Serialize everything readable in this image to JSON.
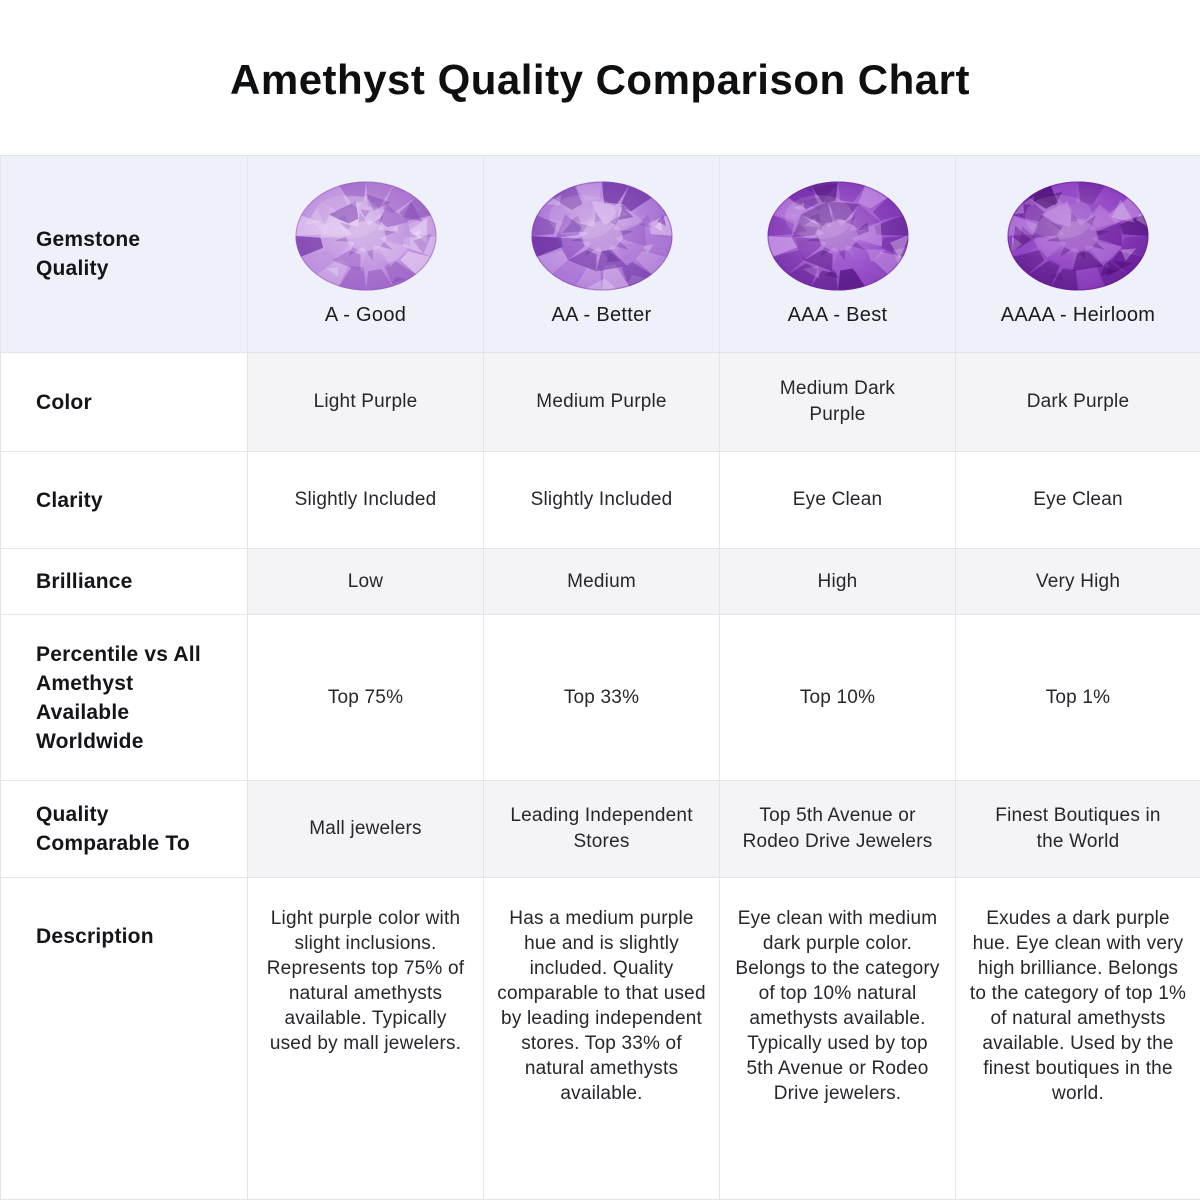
{
  "title": "Amethyst Quality Comparison Chart",
  "colors": {
    "header_row_bg": "#eef1fa",
    "alt_row_bg": "#f4f4f6",
    "border": "#e4e5e9",
    "text": "#1a1b1e"
  },
  "chart_data": {
    "type": "table",
    "title": "Amethyst Quality Comparison Chart",
    "corner_label": "Gemstone\nQuality",
    "columns": [
      {
        "caption": "A - Good",
        "gem_icon": "amethyst-gem-light",
        "gem_palette": {
          "light": "#e4cbf2",
          "mid": "#c195e0",
          "dark": "#9a5fc4",
          "deep": "#7a3cac"
        }
      },
      {
        "caption": "AA - Better",
        "gem_icon": "amethyst-gem-medium",
        "gem_palette": {
          "light": "#d8b6ec",
          "mid": "#af7cd8",
          "dark": "#8748bc",
          "deep": "#66289c"
        }
      },
      {
        "caption": "AAA - Best",
        "gem_icon": "amethyst-gem-medium-dark",
        "gem_palette": {
          "light": "#c99ae6",
          "mid": "#9c55cc",
          "dark": "#7229a6",
          "deep": "#521480"
        }
      },
      {
        "caption": "AAAA - Heirloom",
        "gem_icon": "amethyst-gem-dark",
        "gem_palette": {
          "light": "#bd85de",
          "mid": "#9246c4",
          "dark": "#671d96",
          "deep": "#45086e"
        }
      }
    ],
    "rows": [
      {
        "label": "Color",
        "values": [
          "Light Purple",
          "Medium Purple",
          "Medium Dark\nPurple",
          "Dark Purple"
        ]
      },
      {
        "label": "Clarity",
        "values": [
          "Slightly Included",
          "Slightly Included",
          "Eye Clean",
          "Eye Clean"
        ]
      },
      {
        "label": "Brilliance",
        "values": [
          "Low",
          "Medium",
          "High",
          "Very High"
        ]
      },
      {
        "label": "Percentile vs All\nAmethyst\nAvailable\nWorldwide",
        "values": [
          "Top 75%",
          "Top 33%",
          "Top 10%",
          "Top 1%"
        ]
      },
      {
        "label": "Quality\nComparable To",
        "values": [
          "Mall jewelers",
          "Leading Independent\nStores",
          "Top 5th Avenue or\nRodeo Drive Jewelers",
          "Finest Boutiques in\nthe World"
        ]
      },
      {
        "label": "Description",
        "values": [
          "Light purple color with slight inclusions. Represents top 75% of natural amethysts available. Typically used by mall jewelers.",
          "Has a medium purple hue and is slightly included. Quality comparable to that used by leading independent stores. Top 33% of natural amethysts available.",
          "Eye clean with medium dark purple color. Belongs to the category of top 10% natural amethysts available. Typically used by top 5th Avenue or Rodeo Drive jewelers.",
          "Exudes a dark purple hue. Eye clean with very high brilliance. Belongs to the category of top 1% of natural amethysts available. Used by the finest boutiques in the world."
        ]
      }
    ]
  }
}
